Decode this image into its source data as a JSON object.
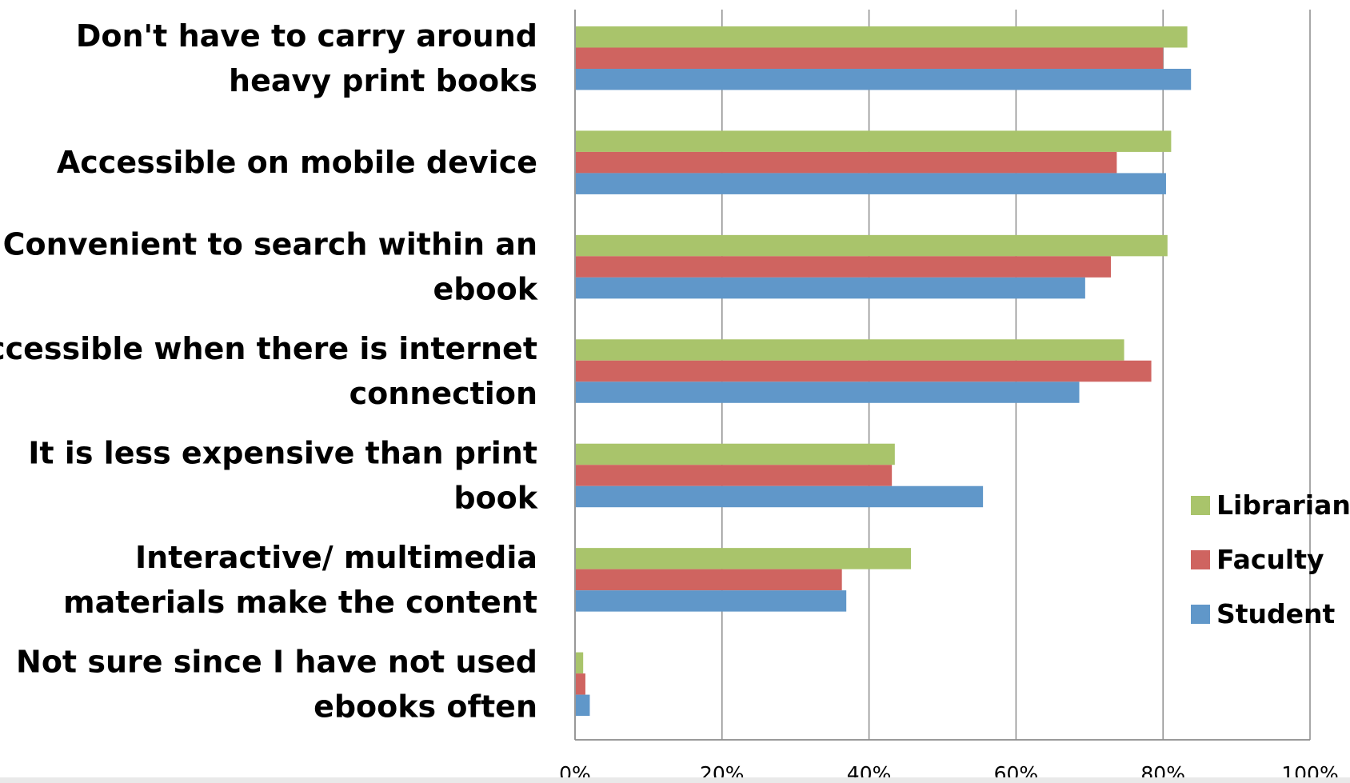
{
  "chart_data": {
    "type": "bar",
    "orientation": "horizontal",
    "categories": [
      [
        "Don't have to carry around",
        "heavy print books"
      ],
      [
        "Accessible on mobile device"
      ],
      [
        "Convenient to search within an",
        "ebook"
      ],
      [
        "Accessible when there is internet",
        "connection"
      ],
      [
        "It is less expensive than print",
        "book"
      ],
      [
        "Interactive/ multimedia",
        "materials make the content"
      ],
      [
        "Not sure since I have not used",
        "ebooks often"
      ]
    ],
    "series": [
      {
        "name": "Librarian",
        "color": "#a9c46b",
        "values": [
          83.2,
          81.0,
          80.5,
          74.6,
          43.4,
          45.6,
          1.0
        ]
      },
      {
        "name": "Faculty",
        "color": "#cf6460",
        "values": [
          79.9,
          73.6,
          72.8,
          78.3,
          43.0,
          36.2,
          1.3
        ]
      },
      {
        "name": "Student",
        "color": "#6097c9",
        "values": [
          83.7,
          80.3,
          69.3,
          68.5,
          55.4,
          36.8,
          1.9
        ]
      }
    ],
    "xlim": [
      0,
      100
    ],
    "xticks": [
      "0%",
      "20%",
      "40%",
      "60%",
      "80%",
      "100%"
    ],
    "grid": true,
    "legend_position": "right",
    "title": "",
    "xlabel": "",
    "ylabel": ""
  }
}
